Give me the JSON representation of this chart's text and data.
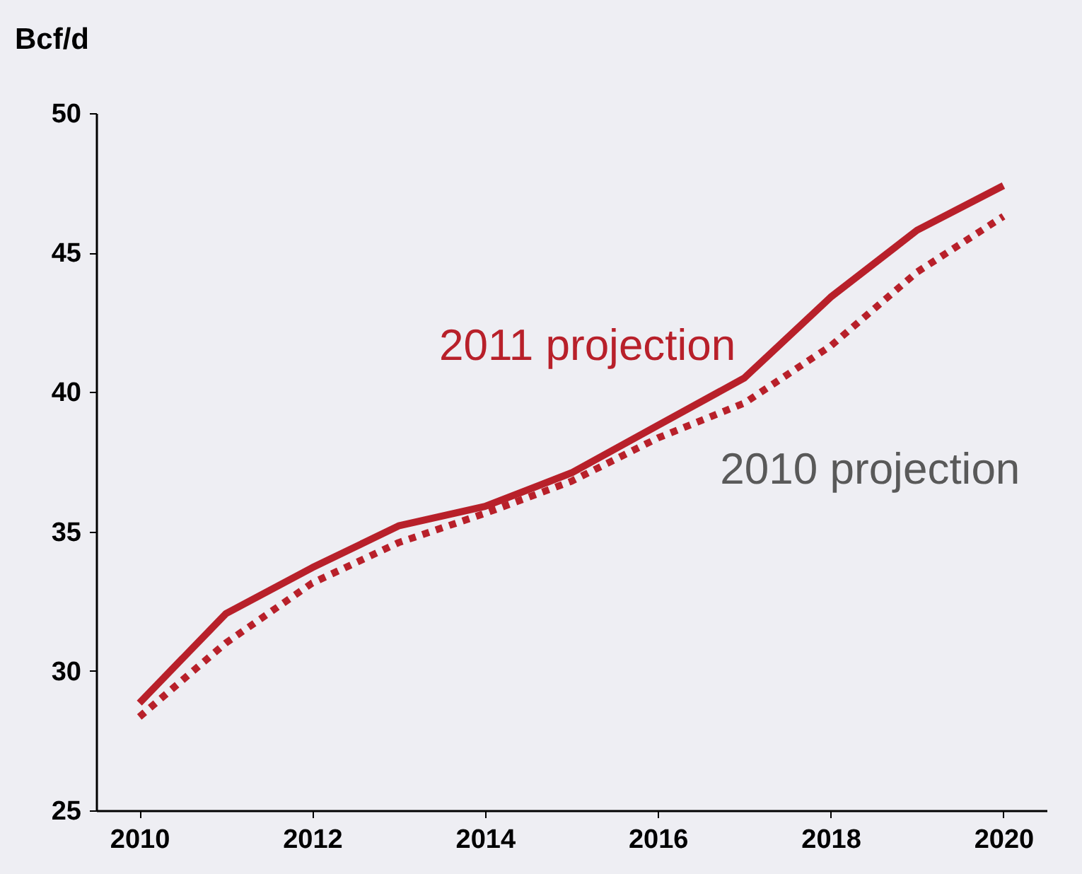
{
  "chart_data": {
    "type": "line",
    "ylabel": "Bcf/d",
    "x": [
      2010,
      2011,
      2012,
      2013,
      2014,
      2015,
      2016,
      2017,
      2018,
      2019,
      2020
    ],
    "series": [
      {
        "name": "2011 projection",
        "color": "#b8202a",
        "line_style": "solid",
        "values": [
          28.85,
          32.05,
          33.7,
          35.2,
          35.9,
          37.1,
          38.8,
          40.5,
          43.4,
          45.8,
          47.4
        ]
      },
      {
        "name": "2010 projection",
        "color": "#b8202a",
        "line_style": "dotted",
        "values": [
          28.35,
          31.0,
          33.15,
          34.6,
          35.65,
          36.8,
          38.35,
          39.6,
          41.65,
          44.3,
          46.3
        ]
      }
    ],
    "xlim": [
      2009.5,
      2020.5
    ],
    "xticks": [
      2010,
      2012,
      2014,
      2016,
      2018,
      2020
    ],
    "ylim": [
      25,
      50
    ],
    "yticks": [
      25,
      30,
      35,
      40,
      45,
      50
    ],
    "grid": false,
    "legend": false,
    "marker": "none"
  }
}
